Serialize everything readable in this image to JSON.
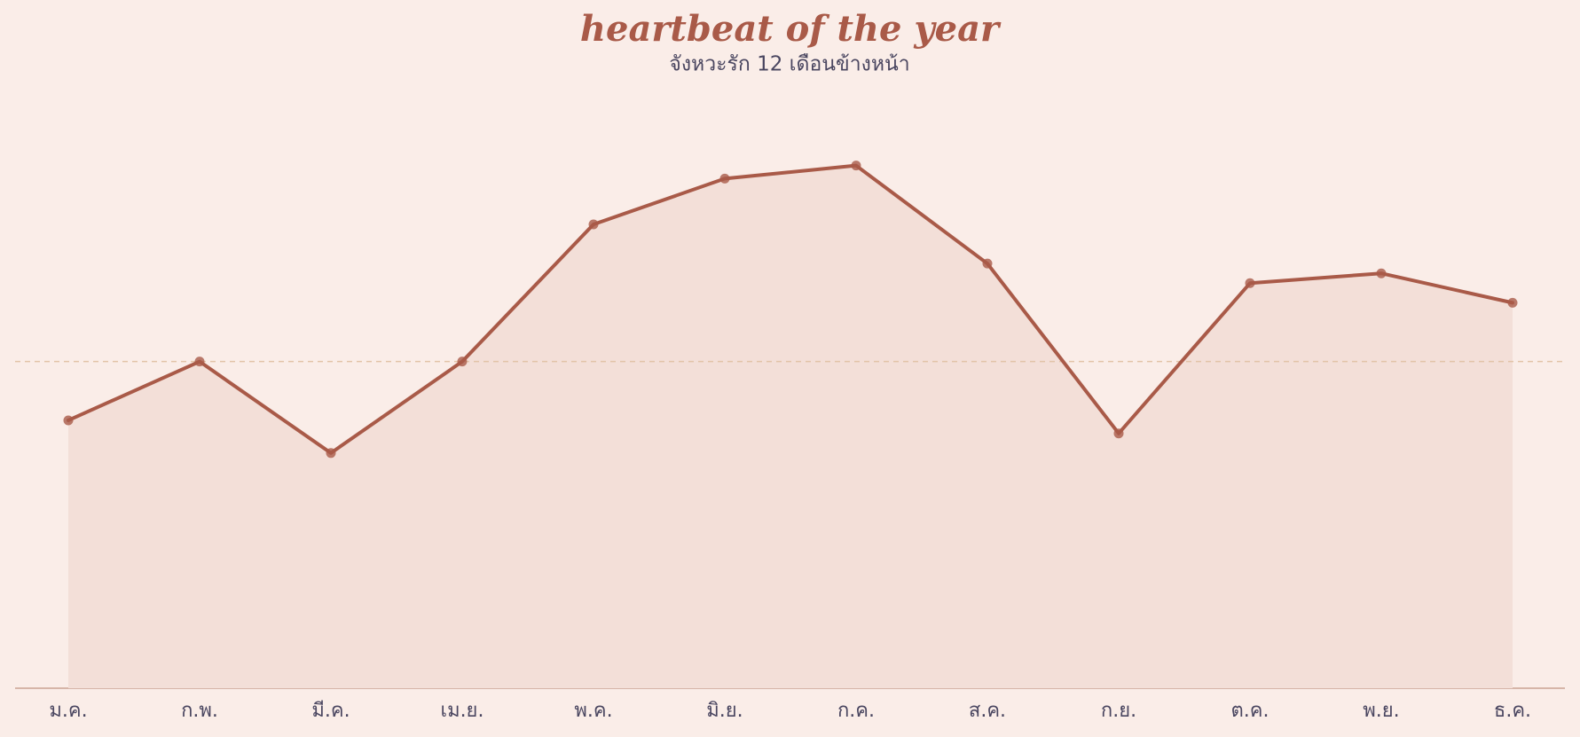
{
  "chart_data": {
    "type": "area-line",
    "title": "heartbeat of the year",
    "subtitle": "จังหวะรัก 12 เดือนข้างหน้า",
    "categories": [
      "ม.ค.",
      "ก.พ.",
      "มี.ค.",
      "เม.ย.",
      "พ.ค.",
      "มิ.ย.",
      "ก.ค.",
      "ส.ค.",
      "ก.ย.",
      "ต.ค.",
      "พ.ย.",
      "ธ.ค."
    ],
    "values": [
      41,
      50,
      36,
      50,
      71,
      78,
      80,
      65,
      39,
      62,
      63.5,
      59
    ],
    "color": "#a95a48",
    "area_color": "#f3dfd8",
    "reference_line": 50,
    "ylim": [
      0,
      90
    ]
  }
}
